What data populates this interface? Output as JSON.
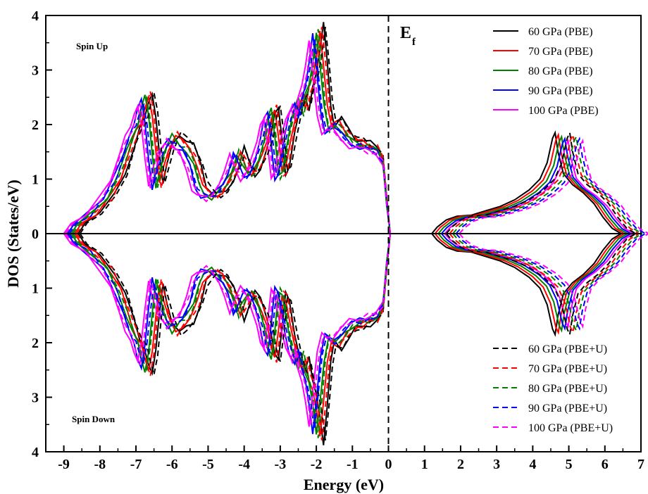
{
  "chart_data": {
    "type": "line",
    "title": "",
    "xlabel": "Energy (eV)",
    "ylabel": "DOS (States/eV)",
    "xlim": [
      -9.5,
      7
    ],
    "ylim": [
      -4,
      4
    ],
    "x_ticks": [
      "-9",
      "-8",
      "-7",
      "-6",
      "-5",
      "-4",
      "-3",
      "-2",
      "-1",
      "0",
      "1",
      "2",
      "3",
      "4",
      "5",
      "6",
      "7"
    ],
    "y_ticks_up": [
      "0",
      "1",
      "2",
      "3",
      "4"
    ],
    "y_ticks_down": [
      "1",
      "2",
      "3",
      "4"
    ],
    "annotations": {
      "spin_up": "Spin Up",
      "spin_down": "Spin Down",
      "fermi": "E",
      "fermi_sub": "f"
    },
    "fermi_level": 0,
    "legend_pbe_position": "top-right",
    "legend_pbeu_position": "bottom-right",
    "colors": {
      "60": "#000000",
      "70": "#ff0000",
      "80": "#008000",
      "90": "#0000ff",
      "100": "#ff00ff"
    },
    "series": [
      {
        "name": "60 GPa (PBE)",
        "pressure": 60,
        "method": "PBE",
        "shift": 0.0,
        "style": "solid"
      },
      {
        "name": "70 GPa (PBE)",
        "pressure": 70,
        "method": "PBE",
        "shift": -0.1,
        "style": "solid"
      },
      {
        "name": "80 GPa (PBE)",
        "pressure": 80,
        "method": "PBE",
        "shift": -0.2,
        "style": "solid"
      },
      {
        "name": "90 GPa (PBE)",
        "pressure": 90,
        "method": "PBE",
        "shift": -0.3,
        "style": "solid"
      },
      {
        "name": "100 GPa (PBE)",
        "pressure": 100,
        "method": "PBE",
        "shift": -0.4,
        "style": "solid"
      },
      {
        "name": "60 GPa (PBE+U)",
        "pressure": 60,
        "method": "PBE+U",
        "shift": 0.05,
        "style": "dashed"
      },
      {
        "name": "70 GPa (PBE+U)",
        "pressure": 70,
        "method": "PBE+U",
        "shift": -0.05,
        "style": "dashed"
      },
      {
        "name": "80 GPa (PBE+U)",
        "pressure": 80,
        "method": "PBE+U",
        "shift": -0.15,
        "style": "dashed"
      },
      {
        "name": "90 GPa (PBE+U)",
        "pressure": 90,
        "method": "PBE+U",
        "shift": -0.25,
        "style": "dashed"
      },
      {
        "name": "100 GPa (PBE+U)",
        "pressure": 100,
        "method": "PBE+U",
        "shift": -0.35,
        "style": "dashed"
      }
    ],
    "valence_profile": [
      [
        -8.6,
        0.0
      ],
      [
        -8.4,
        0.2
      ],
      [
        -8.0,
        0.4
      ],
      [
        -7.6,
        0.7
      ],
      [
        -7.3,
        1.1
      ],
      [
        -7.05,
        1.6
      ],
      [
        -6.9,
        1.9
      ],
      [
        -6.75,
        2.1
      ],
      [
        -6.65,
        2.4
      ],
      [
        -6.55,
        2.6
      ],
      [
        -6.45,
        2.2
      ],
      [
        -6.35,
        1.5
      ],
      [
        -6.25,
        0.9
      ],
      [
        -6.15,
        1.2
      ],
      [
        -6.0,
        1.6
      ],
      [
        -5.8,
        1.85
      ],
      [
        -5.6,
        1.7
      ],
      [
        -5.4,
        1.6
      ],
      [
        -5.2,
        1.3
      ],
      [
        -5.05,
        0.9
      ],
      [
        -4.9,
        0.75
      ],
      [
        -4.7,
        0.7
      ],
      [
        -4.5,
        0.8
      ],
      [
        -4.3,
        1.0
      ],
      [
        -4.15,
        1.2
      ],
      [
        -4.0,
        1.55
      ],
      [
        -3.85,
        1.3
      ],
      [
        -3.7,
        1.1
      ],
      [
        -3.55,
        1.2
      ],
      [
        -3.4,
        1.45
      ],
      [
        -3.25,
        1.8
      ],
      [
        -3.15,
        2.2
      ],
      [
        -3.05,
        2.35
      ],
      [
        -2.95,
        1.8
      ],
      [
        -2.85,
        1.1
      ],
      [
        -2.75,
        1.2
      ],
      [
        -2.6,
        1.8
      ],
      [
        -2.45,
        2.3
      ],
      [
        -2.3,
        2.55
      ],
      [
        -2.2,
        2.3
      ],
      [
        -2.1,
        2.7
      ],
      [
        -2.0,
        2.9
      ],
      [
        -1.9,
        3.3
      ],
      [
        -1.8,
        3.85
      ],
      [
        -1.7,
        3.2
      ],
      [
        -1.6,
        2.4
      ],
      [
        -1.5,
        2.0
      ],
      [
        -1.3,
        2.1
      ],
      [
        -1.1,
        1.9
      ],
      [
        -0.9,
        1.75
      ],
      [
        -0.7,
        1.7
      ],
      [
        -0.5,
        1.65
      ],
      [
        -0.3,
        1.6
      ],
      [
        -0.15,
        1.4
      ],
      [
        -0.05,
        0.6
      ],
      [
        0.05,
        0.0
      ]
    ],
    "conduction_profile": [
      [
        1.2,
        0.0
      ],
      [
        1.35,
        0.12
      ],
      [
        1.6,
        0.25
      ],
      [
        1.9,
        0.32
      ],
      [
        2.3,
        0.34
      ],
      [
        2.7,
        0.42
      ],
      [
        3.1,
        0.5
      ],
      [
        3.5,
        0.62
      ],
      [
        3.9,
        0.8
      ],
      [
        4.2,
        1.0
      ],
      [
        4.4,
        1.3
      ],
      [
        4.55,
        1.75
      ],
      [
        4.62,
        1.85
      ],
      [
        4.7,
        1.5
      ],
      [
        4.85,
        1.1
      ],
      [
        5.1,
        0.9
      ],
      [
        5.4,
        0.75
      ],
      [
        5.7,
        0.55
      ],
      [
        5.95,
        0.3
      ],
      [
        6.2,
        0.1
      ],
      [
        6.45,
        0.0
      ]
    ]
  }
}
